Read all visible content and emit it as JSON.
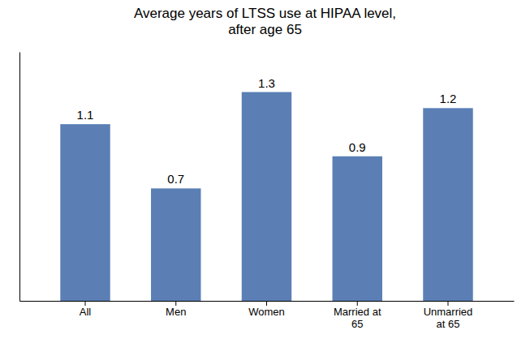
{
  "chart_data": {
    "type": "bar",
    "title": "Average years of LTSS use at HIPAA level,\nafter age 65",
    "categories": [
      "All",
      "Men",
      "Women",
      "Married at\n65",
      "Unmarried\nat 65"
    ],
    "values": [
      1.1,
      0.7,
      1.3,
      0.9,
      1.2
    ],
    "color": "#5b7fb5",
    "ylim": [
      0,
      1.55
    ],
    "data_labels": true,
    "tick_labels": "x",
    "grid": false
  }
}
